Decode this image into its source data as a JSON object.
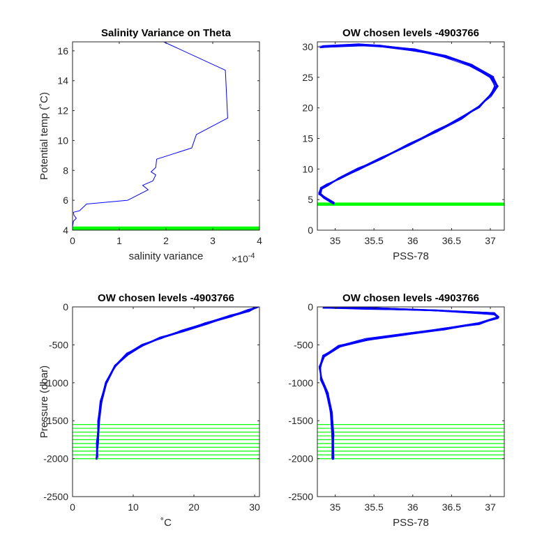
{
  "colors": {
    "profile": "#0000ff",
    "level": "#00ff00",
    "axis": "#262626",
    "background": "#ffffff"
  },
  "chart_data": [
    {
      "type": "line",
      "title": "Salinity Variance on Theta",
      "xlabel": "salinity variance",
      "ylabel": "Potential temp (˚C)",
      "x_exponent_label": "×10",
      "x_exponent_power": "-4",
      "xlim": [
        0,
        4
      ],
      "ylim": [
        4,
        16.6
      ],
      "xticks": [
        0,
        1,
        2,
        3,
        4
      ],
      "yticks": [
        4,
        6,
        8,
        10,
        12,
        14,
        16
      ],
      "grid": false,
      "series": [
        {
          "values": [
            [
              0.0,
              4.2
            ],
            [
              0.02,
              4.6
            ],
            [
              0.08,
              4.8
            ],
            [
              0.03,
              5.0
            ],
            [
              0.02,
              5.2
            ],
            [
              0.15,
              5.3
            ],
            [
              0.3,
              5.75
            ],
            [
              1.18,
              6.0
            ],
            [
              1.62,
              6.7
            ],
            [
              1.5,
              7.0
            ],
            [
              1.72,
              7.3
            ],
            [
              1.78,
              7.7
            ],
            [
              1.68,
              7.9
            ],
            [
              1.78,
              8.2
            ],
            [
              1.8,
              8.75
            ],
            [
              2.55,
              9.5
            ],
            [
              2.65,
              10.4
            ],
            [
              3.32,
              11.5
            ],
            [
              3.27,
              14.7
            ],
            [
              1.95,
              16.6
            ]
          ]
        }
      ],
      "reference_levels": [
        4.0,
        4.05,
        4.1,
        4.15,
        4.2
      ]
    },
    {
      "type": "line",
      "title": "OW chosen levels -4903766",
      "xlabel": "PSS-78",
      "ylabel": "",
      "xlim": [
        34.77,
        37.18
      ],
      "ylim": [
        0,
        30.8
      ],
      "xticks": [
        35,
        35.5,
        36,
        36.5,
        37
      ],
      "yticks": [
        0,
        5,
        10,
        15,
        20,
        25,
        30
      ],
      "grid": false,
      "series": [
        {
          "values": [
            [
              34.98,
              4.4
            ],
            [
              34.86,
              5.3
            ],
            [
              34.8,
              6.0
            ],
            [
              34.82,
              6.8
            ],
            [
              34.9,
              7.4
            ],
            [
              35.05,
              8.4
            ],
            [
              35.3,
              10.0
            ],
            [
              35.6,
              11.8
            ],
            [
              35.95,
              14.0
            ],
            [
              36.3,
              16.2
            ],
            [
              36.62,
              18.3
            ],
            [
              36.85,
              20.2
            ],
            [
              37.0,
              22.0
            ],
            [
              37.08,
              23.5
            ],
            [
              37.02,
              25.0
            ],
            [
              36.75,
              27.0
            ],
            [
              36.4,
              28.5
            ],
            [
              36.0,
              29.5
            ],
            [
              35.6,
              30.1
            ],
            [
              35.3,
              30.3
            ],
            [
              34.82,
              30.0
            ]
          ]
        }
      ],
      "reference_levels": [
        4.1,
        4.2,
        4.3,
        4.4
      ]
    },
    {
      "type": "line",
      "title": "OW chosen levels -4903766",
      "xlabel": "˚C",
      "ylabel": "Pressure (dbar)",
      "xlim": [
        0,
        30.8
      ],
      "ylim": [
        -2500,
        0
      ],
      "xticks": [
        0,
        10,
        20,
        30
      ],
      "yticks": [
        -2500,
        -2000,
        -1500,
        -1000,
        -500,
        0
      ],
      "grid": false,
      "series": [
        {
          "values": [
            [
              4.0,
              -2000
            ],
            [
              4.1,
              -1800
            ],
            [
              4.3,
              -1500
            ],
            [
              4.7,
              -1250
            ],
            [
              5.5,
              -1000
            ],
            [
              7.0,
              -780
            ],
            [
              9.0,
              -620
            ],
            [
              11.5,
              -500
            ],
            [
              14.5,
              -410
            ],
            [
              18.0,
              -320
            ],
            [
              22.0,
              -220
            ],
            [
              26.0,
              -120
            ],
            [
              29.0,
              -50
            ],
            [
              30.5,
              0
            ]
          ]
        }
      ],
      "reference_levels": [
        -1550,
        -1600,
        -1650,
        -1700,
        -1750,
        -1800,
        -1850,
        -1900,
        -1950,
        -2000
      ]
    },
    {
      "type": "line",
      "title": "OW chosen levels -4903766",
      "xlabel": "PSS-78",
      "ylabel": "",
      "xlim": [
        34.77,
        37.18
      ],
      "ylim": [
        -2500,
        0
      ],
      "xticks": [
        35,
        35.5,
        36,
        36.5,
        37
      ],
      "yticks": [
        -2500,
        -2000,
        -1500,
        -1000,
        -500,
        0
      ],
      "grid": false,
      "series": [
        {
          "values": [
            [
              34.97,
              -2000
            ],
            [
              34.97,
              -1700
            ],
            [
              34.95,
              -1400
            ],
            [
              34.9,
              -1150
            ],
            [
              34.82,
              -950
            ],
            [
              34.8,
              -800
            ],
            [
              34.85,
              -650
            ],
            [
              35.05,
              -520
            ],
            [
              35.4,
              -430
            ],
            [
              35.9,
              -360
            ],
            [
              36.4,
              -290
            ],
            [
              36.85,
              -220
            ],
            [
              37.1,
              -140
            ],
            [
              37.05,
              -90
            ],
            [
              36.3,
              -50
            ],
            [
              35.4,
              -20
            ],
            [
              34.85,
              -5
            ]
          ]
        }
      ],
      "reference_levels": [
        -1550,
        -1600,
        -1650,
        -1700,
        -1750,
        -1800,
        -1850,
        -1900,
        -1950,
        -2000
      ]
    }
  ]
}
